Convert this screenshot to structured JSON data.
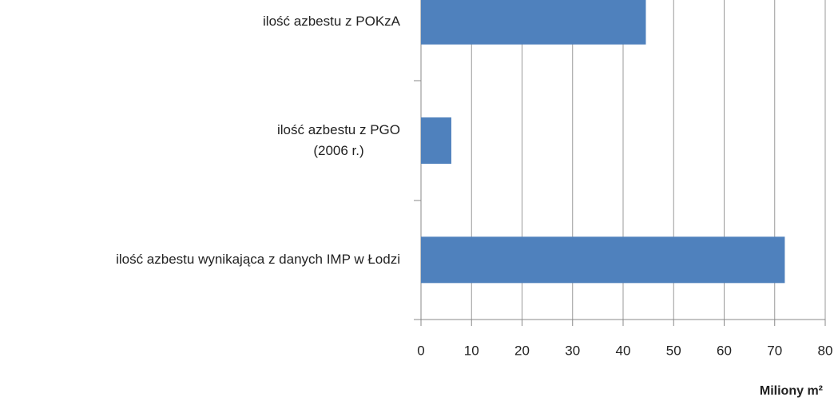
{
  "chart_data": {
    "type": "barh",
    "categories": [
      "ilość azbestu z POKzA",
      "ilość azbestu z PGO\n(2006 r.)",
      "ilość azbestu wynikająca z danych IMP w Łodzi"
    ],
    "values": [
      44.5,
      6,
      72
    ],
    "color": "#4f81bd",
    "xlim": [
      0,
      80
    ],
    "xticks": [
      0,
      10,
      20,
      30,
      40,
      50,
      60,
      70,
      80
    ],
    "grid": true,
    "x_label": "Miliony m²"
  }
}
